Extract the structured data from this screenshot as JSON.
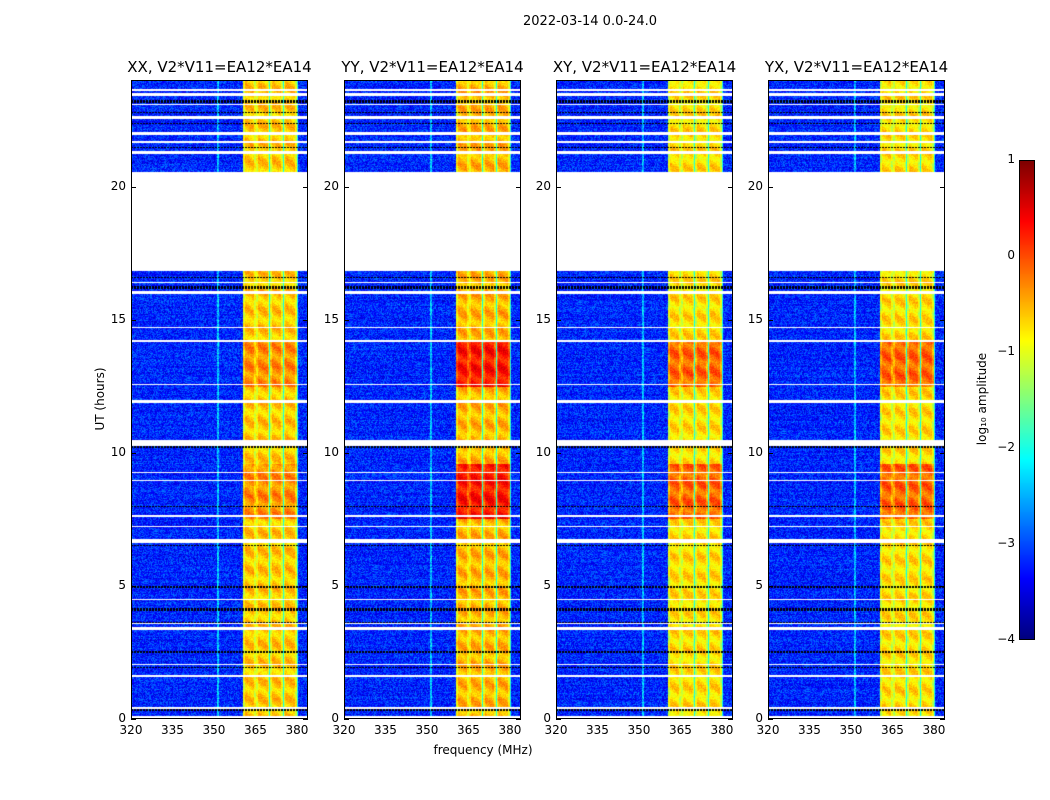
{
  "chart_data": {
    "type": "heatmap",
    "title": "2022-03-14 0.0-24.0",
    "xlabel": "frequency (MHz)",
    "ylabel": "UT (hours)",
    "xlim": [
      320,
      384
    ],
    "ylim": [
      0,
      24
    ],
    "xticks": [
      "320",
      "335",
      "350",
      "365",
      "380"
    ],
    "xtick_values": [
      320,
      335,
      350,
      365,
      380
    ],
    "yticks": [
      "0",
      "5",
      "10",
      "15",
      "20"
    ],
    "ytick_values": [
      0,
      5,
      10,
      15,
      20
    ],
    "panels": [
      {
        "title": "XX, V2*V11=EA12*EA14",
        "band_level": -0.6,
        "strong_level": -0.3
      },
      {
        "title": "YY, V2*V11=EA12*EA14",
        "band_level": -0.5,
        "strong_level": 0.3
      },
      {
        "title": "XY, V2*V11=EA12*EA14",
        "band_level": -0.7,
        "strong_level": -0.1
      },
      {
        "title": "YX, V2*V11=EA12*EA14",
        "band_level": -0.7,
        "strong_level": -0.1
      }
    ],
    "background_level": -3.2,
    "bright_subbands_mhz": [
      [
        360.5,
        365
      ],
      [
        365.3,
        370
      ],
      [
        370.3,
        375
      ],
      [
        375.3,
        380
      ]
    ],
    "flagged_blank_hours": [
      [
        16.85,
        20.6
      ],
      [
        0.0,
        0.1
      ],
      [
        0.35,
        0.45
      ],
      [
        1.55,
        1.65
      ],
      [
        2.0,
        2.05
      ],
      [
        3.35,
        3.45
      ],
      [
        3.55,
        3.6
      ],
      [
        4.45,
        4.5
      ],
      [
        6.6,
        6.75
      ],
      [
        7.2,
        7.25
      ],
      [
        7.6,
        7.65
      ],
      [
        8.95,
        9.0
      ],
      [
        9.25,
        9.3
      ],
      [
        10.25,
        10.5
      ],
      [
        11.9,
        12.0
      ],
      [
        12.55,
        12.6
      ],
      [
        14.2,
        14.25
      ],
      [
        14.7,
        14.75
      ],
      [
        16.0,
        16.1
      ],
      [
        16.4,
        16.45
      ],
      [
        21.25,
        21.4
      ],
      [
        21.7,
        21.75
      ],
      [
        22.0,
        22.1
      ],
      [
        22.6,
        22.7
      ],
      [
        23.1,
        23.15
      ],
      [
        23.45,
        23.55
      ],
      [
        23.65,
        23.7
      ]
    ],
    "flagged_black_hours": [
      [
        0.3,
        0.35
      ],
      [
        1.9,
        1.95
      ],
      [
        2.45,
        2.55
      ],
      [
        3.6,
        3.65
      ],
      [
        4.05,
        4.15
      ],
      [
        4.9,
        5.0
      ],
      [
        6.5,
        6.55
      ],
      [
        7.95,
        8.0
      ],
      [
        10.2,
        10.25
      ],
      [
        16.2,
        16.3
      ],
      [
        16.6,
        16.65
      ],
      [
        21.5,
        21.55
      ],
      [
        22.4,
        22.45
      ],
      [
        22.8,
        22.85
      ],
      [
        23.2,
        23.3
      ]
    ],
    "strong_hours": [
      [
        7.5,
        9.6
      ],
      [
        12.5,
        14.2
      ]
    ],
    "colorbar": {
      "label": "log₁₀ amplitude",
      "range": [
        -4,
        1
      ],
      "ticks": [
        "1",
        "0",
        "−1",
        "−2",
        "−3",
        "−4"
      ],
      "tick_values": [
        1,
        0,
        -1,
        -2,
        -3,
        -4
      ],
      "colormap": "jet"
    }
  }
}
